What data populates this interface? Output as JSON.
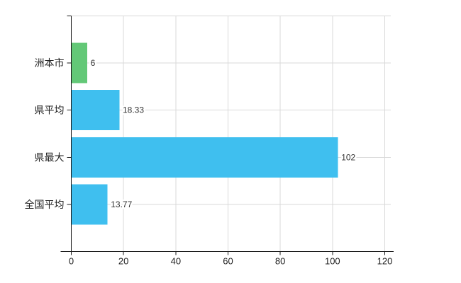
{
  "chart_data": {
    "type": "bar",
    "orientation": "horizontal",
    "title": "",
    "xlabel": "",
    "ylabel": "",
    "categories": [
      "洲本市",
      "県平均",
      "県最大",
      "全国平均"
    ],
    "values": [
      6,
      18.33,
      102,
      13.77
    ],
    "value_labels": [
      "6",
      "18.33",
      "102",
      "13.77"
    ],
    "bar_colors": [
      "#63c877",
      "#3fbfef",
      "#3fbfef",
      "#3fbfef"
    ],
    "x_ticks": [
      "0",
      "20",
      "40",
      "60",
      "80",
      "100",
      "120"
    ],
    "x_tick_values": [
      0,
      20,
      40,
      60,
      80,
      100,
      120
    ],
    "xlim": [
      0,
      120
    ],
    "grid": true,
    "legend": false
  },
  "colors": {
    "bar_green": "#63c877",
    "bar_blue": "#3fbfef",
    "axis": "#1a1a1a",
    "grid": "#d9d9d9",
    "text": "#333333",
    "category_text": "#222222",
    "background": "#ffffff"
  }
}
